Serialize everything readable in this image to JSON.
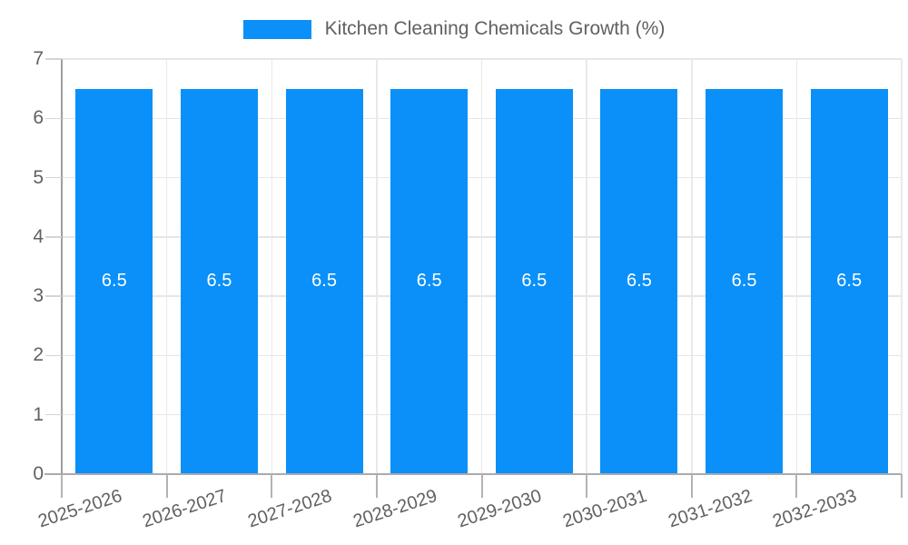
{
  "chart_data": {
    "type": "bar",
    "title": "",
    "legend": {
      "position": "top",
      "entries": [
        {
          "label": "Kitchen Cleaning Chemicals Growth (%)",
          "color": "#0a90f8"
        }
      ]
    },
    "categories": [
      "2025-2026",
      "2026-2027",
      "2027-2028",
      "2028-2029",
      "2029-2030",
      "2030-2031",
      "2031-2032",
      "2032-2033"
    ],
    "series": [
      {
        "name": "Kitchen Cleaning Chemicals Growth (%)",
        "color": "#0a90f8",
        "values": [
          6.5,
          6.5,
          6.5,
          6.5,
          6.5,
          6.5,
          6.5,
          6.5
        ],
        "data_labels": [
          "6.5",
          "6.5",
          "6.5",
          "6.5",
          "6.5",
          "6.5",
          "6.5",
          "6.5"
        ]
      }
    ],
    "xlabel": "",
    "ylabel": "",
    "ylim": [
      0,
      7
    ],
    "yticks": [
      0,
      1,
      2,
      3,
      4,
      5,
      6,
      7
    ],
    "grid": true,
    "colors": {
      "bar": "#0a90f8",
      "bar_label": "#ffffff",
      "axis_text": "#616161",
      "gridline": "#e6e6e6",
      "axis_line": "#9e9e9e",
      "background": "#ffffff"
    }
  }
}
